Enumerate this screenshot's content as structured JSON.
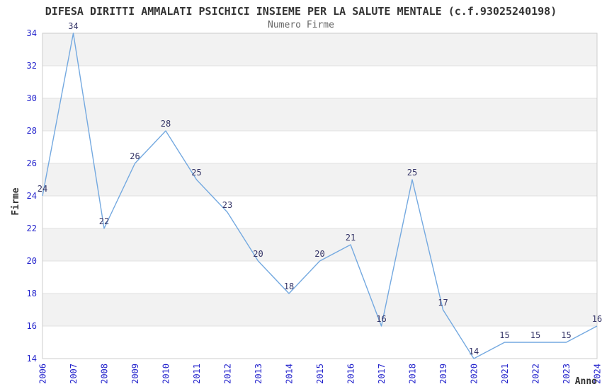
{
  "chart_data": {
    "type": "line",
    "title": "DIFESA DIRITTI AMMALATI PSICHICI INSIEME PER LA SALUTE MENTALE (c.f.93025240198)",
    "subtitle": "Numero Firme",
    "xlabel": "Anno",
    "ylabel": "Firme",
    "categories": [
      "2006",
      "2007",
      "2008",
      "2009",
      "2010",
      "2011",
      "2012",
      "2013",
      "2014",
      "2015",
      "2016",
      "2017",
      "2018",
      "2019",
      "2020",
      "2021",
      "2022",
      "2023",
      "2024"
    ],
    "values": [
      24,
      34,
      22,
      26,
      28,
      25,
      23,
      20,
      18,
      20,
      21,
      16,
      25,
      17,
      14,
      15,
      15,
      15,
      16
    ],
    "ylim": [
      14,
      34
    ],
    "ytick_step": 2,
    "yticks": [
      14,
      16,
      18,
      20,
      22,
      24,
      26,
      28,
      30,
      32,
      34
    ],
    "grid": "horizontal-bands",
    "legend_position": "none",
    "data_labels_visible": true,
    "colors": {
      "line": "#74a9e0",
      "tick_label": "#2222cc",
      "data_label": "#333366",
      "band": "#f2f2f2",
      "gridline": "#e0e0e0",
      "plot_border": "#cccccc",
      "title": "#333333",
      "subtitle": "#666666",
      "axis_title": "#333333",
      "background": "#ffffff"
    }
  }
}
